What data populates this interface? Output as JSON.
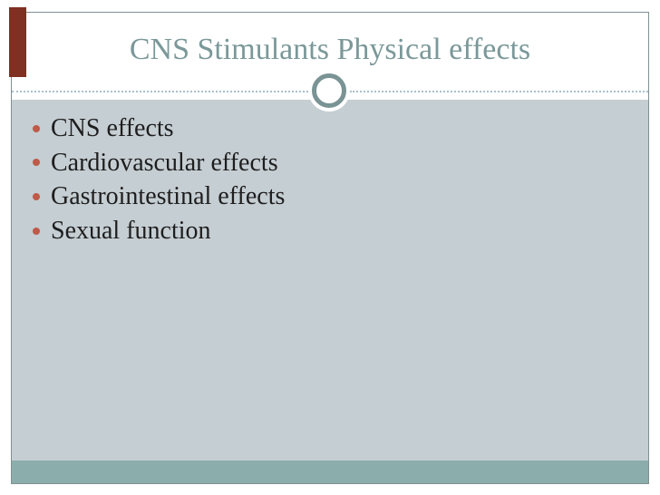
{
  "slide": {
    "title": "CNS Stimulants Physical effects",
    "bullets": [
      "CNS effects",
      "Cardiovascular effects",
      "Gastrointestinal effects",
      "Sexual function"
    ],
    "colors": {
      "title_text": "#7b9899",
      "body_text": "#1e1e1e",
      "content_background": "#c5ced3",
      "footer_bar": "#8badac",
      "bullet_dot": "#bf5a48",
      "accent_tab": "#802f23",
      "slide_border": "#7f9192",
      "dotted_divider": "#a8c0cc",
      "circle_ring": "#7a9394"
    }
  }
}
